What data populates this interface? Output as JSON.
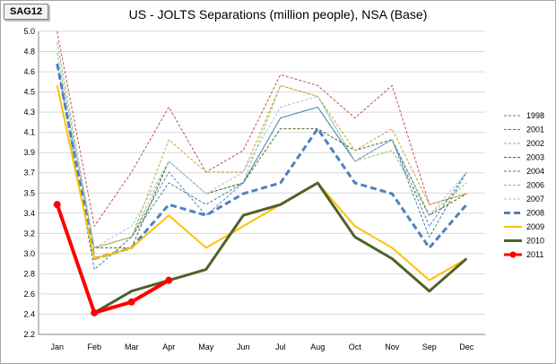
{
  "badge": "SAG12",
  "chart_data": {
    "type": "line",
    "title": "US - JOLTS Separations (million people), NSA (Base)",
    "xlabel": "",
    "ylabel": "",
    "categories": [
      "Jan",
      "Feb",
      "Mar",
      "Apr",
      "May",
      "Jun",
      "Jul",
      "Aug",
      "Oct",
      "Nov",
      "Sep",
      "Dec"
    ],
    "ylim": [
      2.2,
      5.0
    ],
    "yticks": [
      "2.2",
      "2.4",
      "2.6",
      "2.8",
      "3.0",
      "3.2",
      "3.4",
      "3.5",
      "3.7",
      "3.9",
      "4.1",
      "4.3",
      "4.5",
      "4.6",
      "4.8",
      "5.0"
    ],
    "grid": true,
    "legend": "right",
    "series": [
      {
        "name": "1998",
        "color": "#4f81bd",
        "style": "dashed-thin",
        "values": [
          4.7,
          3.0,
          3.1,
          3.7,
          3.3,
          3.6,
          4.2,
          4.3,
          3.8,
          4.0,
          3.2,
          3.7
        ]
      },
      {
        "name": "2001",
        "color": "#c0504d",
        "style": "dashed-thin",
        "values": [
          5.0,
          3.2,
          3.7,
          4.3,
          3.7,
          3.9,
          4.6,
          4.5,
          4.2,
          4.5,
          3.4,
          3.5
        ]
      },
      {
        "name": "2002",
        "color": "#9bbb59",
        "style": "dashed-thin",
        "values": [
          4.8,
          3.0,
          3.1,
          3.8,
          3.5,
          3.6,
          4.5,
          4.4,
          3.8,
          3.9,
          3.3,
          3.6
        ]
      },
      {
        "name": "2003",
        "color": "#4f6228",
        "style": "dashed-thin",
        "values": [
          4.9,
          3.0,
          3.0,
          3.8,
          3.5,
          3.6,
          4.1,
          4.1,
          3.9,
          4.0,
          3.3,
          3.5
        ]
      },
      {
        "name": "2004",
        "color": "#31859c",
        "style": "dashed-thin",
        "values": [
          4.7,
          2.8,
          3.1,
          3.6,
          3.4,
          3.6,
          4.2,
          4.3,
          3.8,
          4.0,
          3.1,
          3.7
        ]
      },
      {
        "name": "2006",
        "color": "#c9a230",
        "style": "dashed-thin",
        "values": [
          4.9,
          3.0,
          3.1,
          4.0,
          3.7,
          3.7,
          4.5,
          4.4,
          3.9,
          4.1,
          3.4,
          3.5
        ]
      },
      {
        "name": "2007",
        "color": "#9dc3e6",
        "style": "dashed-thin",
        "values": [
          4.9,
          3.0,
          3.2,
          3.8,
          3.5,
          3.7,
          4.3,
          4.4,
          3.8,
          4.0,
          3.3,
          3.7
        ]
      },
      {
        "name": "2008",
        "color": "#4f81bd",
        "style": "dashed-thick",
        "values": [
          4.7,
          2.9,
          3.0,
          3.4,
          3.3,
          3.5,
          3.6,
          4.1,
          3.6,
          3.5,
          3.0,
          3.4
        ]
      },
      {
        "name": "2009",
        "color": "#ffc000",
        "style": "solid",
        "values": [
          4.5,
          2.9,
          3.0,
          3.3,
          3.0,
          3.2,
          3.4,
          3.6,
          3.2,
          3.0,
          2.7,
          2.9
        ]
      },
      {
        "name": "2010",
        "color": "#4f6228",
        "style": "solid-thick",
        "values": [
          null,
          2.4,
          2.6,
          2.7,
          2.8,
          3.3,
          3.4,
          3.6,
          3.1,
          2.9,
          2.6,
          2.9
        ]
      },
      {
        "name": "2011",
        "color": "#ff0000",
        "style": "solid-marker",
        "values": [
          3.4,
          2.4,
          2.5,
          2.7,
          null,
          null,
          null,
          null,
          null,
          null,
          null,
          null
        ]
      }
    ]
  }
}
